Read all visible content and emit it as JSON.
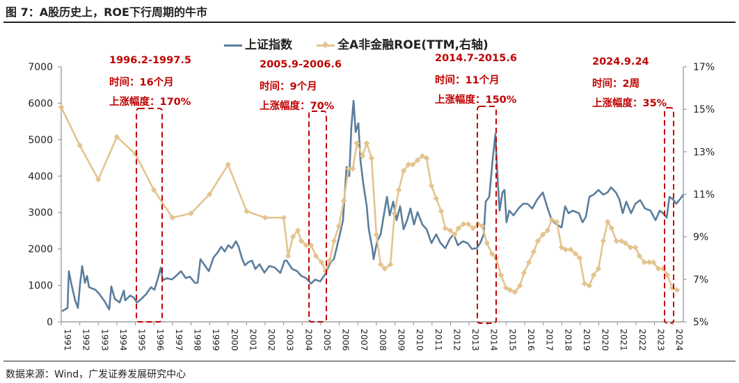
{
  "title": "图 7：A股历史上，ROE下行周期的牛市",
  "source": "数据来源：Wind，广发证券发展研究中心",
  "colors": {
    "index": "#5a7d9c",
    "roe": "#e3c48f",
    "annotation": "#c00000"
  },
  "annotations": [
    {
      "period": "1996.2-1997.5",
      "duration": "时间：16个月",
      "gain": "上涨幅度：170%"
    },
    {
      "period": "2005.9-2006.6",
      "duration": "时间：9个月",
      "gain": "上涨幅度：70%"
    },
    {
      "period": "2014.7-2015.6",
      "duration": "时间：11个月",
      "gain": "上涨幅度：150%"
    },
    {
      "period": "2024.9.24",
      "duration": "时间：2周",
      "gain": "上涨幅度：35%"
    }
  ],
  "chart_data": {
    "type": "line",
    "title": "",
    "legend_position": "top",
    "x_ticks": [
      "1991",
      "1992",
      "1993",
      "1994",
      "1995",
      "1996",
      "1997",
      "1998",
      "1999",
      "2000",
      "2001",
      "2002",
      "2003",
      "2004",
      "2005",
      "2006",
      "2007",
      "2008",
      "2009",
      "2010",
      "2011",
      "2012",
      "2013",
      "2014",
      "2015",
      "2016",
      "2017",
      "2018",
      "2019",
      "2020",
      "2021",
      "2022",
      "2023",
      "2024"
    ],
    "y_left": {
      "ticks": [
        "0",
        "1000",
        "2000",
        "3000",
        "4000",
        "5000",
        "6000",
        "7000"
      ],
      "range": [
        0,
        7000
      ]
    },
    "y_right": {
      "ticks": [
        "5%",
        "7%",
        "9%",
        "11%",
        "13%",
        "15%",
        "17%"
      ],
      "range": [
        5,
        17
      ]
    },
    "x_range": [
      1991,
      2024.6
    ],
    "series": [
      {
        "name": "上证指数",
        "axis": "left",
        "points": [
          [
            1991.04,
            290
          ],
          [
            1991.34,
            380
          ],
          [
            1991.41,
            1390
          ],
          [
            1991.56,
            1010
          ],
          [
            1991.75,
            590
          ],
          [
            1991.9,
            380
          ],
          [
            1992.01,
            1010
          ],
          [
            1992.13,
            1530
          ],
          [
            1992.28,
            1070
          ],
          [
            1992.39,
            1260
          ],
          [
            1992.5,
            950
          ],
          [
            1992.84,
            880
          ],
          [
            1993.06,
            760
          ],
          [
            1993.33,
            570
          ],
          [
            1993.59,
            340
          ],
          [
            1993.7,
            970
          ],
          [
            1993.89,
            630
          ],
          [
            1994.15,
            530
          ],
          [
            1994.38,
            860
          ],
          [
            1994.45,
            590
          ],
          [
            1994.72,
            720
          ],
          [
            1994.9,
            670
          ],
          [
            1995.09,
            530
          ],
          [
            1995.32,
            630
          ],
          [
            1995.58,
            760
          ],
          [
            1995.84,
            950
          ],
          [
            1996.03,
            880
          ],
          [
            1996.22,
            1200
          ],
          [
            1996.37,
            1490
          ],
          [
            1996.48,
            1140
          ],
          [
            1996.71,
            1200
          ],
          [
            1996.97,
            1160
          ],
          [
            1997.19,
            1260
          ],
          [
            1997.46,
            1390
          ],
          [
            1997.72,
            1200
          ],
          [
            1997.94,
            1240
          ],
          [
            1998.21,
            1070
          ],
          [
            1998.36,
            1070
          ],
          [
            1998.51,
            1720
          ],
          [
            1998.7,
            1580
          ],
          [
            1998.96,
            1390
          ],
          [
            1999.22,
            1770
          ],
          [
            1999.45,
            1910
          ],
          [
            1999.63,
            2060
          ],
          [
            1999.82,
            1930
          ],
          [
            2000.01,
            2100
          ],
          [
            2000.2,
            2020
          ],
          [
            2000.42,
            2210
          ],
          [
            2000.57,
            2060
          ],
          [
            2000.76,
            1720
          ],
          [
            2000.91,
            1550
          ],
          [
            2001.1,
            1640
          ],
          [
            2001.29,
            1680
          ],
          [
            2001.47,
            1450
          ],
          [
            2001.7,
            1580
          ],
          [
            2001.96,
            1350
          ],
          [
            2002.22,
            1530
          ],
          [
            2002.52,
            1490
          ],
          [
            2002.82,
            1340
          ],
          [
            2003.05,
            1680
          ],
          [
            2003.16,
            1680
          ],
          [
            2003.46,
            1450
          ],
          [
            2003.73,
            1390
          ],
          [
            2003.95,
            1260
          ],
          [
            2004.21,
            1200
          ],
          [
            2004.48,
            1050
          ],
          [
            2004.7,
            1160
          ],
          [
            2004.97,
            1110
          ],
          [
            2005.23,
            1300
          ],
          [
            2005.53,
            1640
          ],
          [
            2005.71,
            1720
          ],
          [
            2005.98,
            2290
          ],
          [
            2006.2,
            2790
          ],
          [
            2006.39,
            4250
          ],
          [
            2006.54,
            4000
          ],
          [
            2006.65,
            5340
          ],
          [
            2006.77,
            6070
          ],
          [
            2006.88,
            5210
          ],
          [
            2007.03,
            5450
          ],
          [
            2007.14,
            4440
          ],
          [
            2007.29,
            3810
          ],
          [
            2007.48,
            3170
          ],
          [
            2007.59,
            2540
          ],
          [
            2007.78,
            2020
          ],
          [
            2007.85,
            1720
          ],
          [
            2008.04,
            2210
          ],
          [
            2008.23,
            2400
          ],
          [
            2008.42,
            2980
          ],
          [
            2008.57,
            3430
          ],
          [
            2008.72,
            2920
          ],
          [
            2008.91,
            3300
          ],
          [
            2009.09,
            2790
          ],
          [
            2009.28,
            3170
          ],
          [
            2009.47,
            2540
          ],
          [
            2009.66,
            2790
          ],
          [
            2009.84,
            3110
          ],
          [
            2010.03,
            2670
          ],
          [
            2010.22,
            3010
          ],
          [
            2010.48,
            2670
          ],
          [
            2010.71,
            2540
          ],
          [
            2010.97,
            2160
          ],
          [
            2011.23,
            2400
          ],
          [
            2011.46,
            2160
          ],
          [
            2011.72,
            2020
          ],
          [
            2011.98,
            2290
          ],
          [
            2012.17,
            2400
          ],
          [
            2012.4,
            2100
          ],
          [
            2012.66,
            2210
          ],
          [
            2012.92,
            2160
          ],
          [
            2013.15,
            2000
          ],
          [
            2013.41,
            2020
          ],
          [
            2013.6,
            2160
          ],
          [
            2013.79,
            2400
          ],
          [
            2013.9,
            3300
          ],
          [
            2014.09,
            3430
          ],
          [
            2014.27,
            4440
          ],
          [
            2014.42,
            5150
          ],
          [
            2014.54,
            3930
          ],
          [
            2014.65,
            3050
          ],
          [
            2014.8,
            3550
          ],
          [
            2014.91,
            3620
          ],
          [
            2015.02,
            2730
          ],
          [
            2015.17,
            3050
          ],
          [
            2015.4,
            2920
          ],
          [
            2015.66,
            3110
          ],
          [
            2015.92,
            3240
          ],
          [
            2016.15,
            3240
          ],
          [
            2016.41,
            3110
          ],
          [
            2016.68,
            3360
          ],
          [
            2016.98,
            3550
          ],
          [
            2017.24,
            3110
          ],
          [
            2017.46,
            2790
          ],
          [
            2017.73,
            2670
          ],
          [
            2017.99,
            2590
          ],
          [
            2018.18,
            3170
          ],
          [
            2018.37,
            2980
          ],
          [
            2018.59,
            3050
          ],
          [
            2018.93,
            2980
          ],
          [
            2019.12,
            2730
          ],
          [
            2019.3,
            2880
          ],
          [
            2019.49,
            3430
          ],
          [
            2019.72,
            3490
          ],
          [
            2019.98,
            3620
          ],
          [
            2020.24,
            3490
          ],
          [
            2020.47,
            3550
          ],
          [
            2020.66,
            3690
          ],
          [
            2020.92,
            3550
          ],
          [
            2021.11,
            3360
          ],
          [
            2021.29,
            2980
          ],
          [
            2021.48,
            3300
          ],
          [
            2021.74,
            2980
          ],
          [
            2021.97,
            3240
          ],
          [
            2022.23,
            3340
          ],
          [
            2022.49,
            3110
          ],
          [
            2022.79,
            3050
          ],
          [
            2023.06,
            2790
          ],
          [
            2023.28,
            3050
          ],
          [
            2023.47,
            2980
          ],
          [
            2023.66,
            2860
          ],
          [
            2023.81,
            3430
          ],
          [
            2024.0,
            3360
          ],
          [
            2024.18,
            3240
          ],
          [
            2024.37,
            3360
          ],
          [
            2024.56,
            3490
          ]
        ]
      },
      {
        "name": "全A非金融ROE(TTM,右轴)",
        "axis": "right",
        "points": [
          [
            1991.0,
            15.1
          ],
          [
            1992.0,
            13.3
          ],
          [
            1993.0,
            11.7
          ],
          [
            1994.0,
            13.7
          ],
          [
            1995.0,
            12.9
          ],
          [
            1996.0,
            11.2
          ],
          [
            1997.0,
            9.9
          ],
          [
            1998.0,
            10.1
          ],
          [
            1999.0,
            11.0
          ],
          [
            2000.0,
            12.4
          ],
          [
            2001.0,
            10.2
          ],
          [
            2002.0,
            9.9
          ],
          [
            2003.0,
            9.9
          ],
          [
            2003.24,
            8.1
          ],
          [
            2003.5,
            9.0
          ],
          [
            2003.76,
            9.3
          ],
          [
            2003.95,
            8.8
          ],
          [
            2004.21,
            8.6
          ],
          [
            2004.48,
            8.6
          ],
          [
            2004.74,
            8.1
          ],
          [
            2005.04,
            7.8
          ],
          [
            2005.26,
            7.4
          ],
          [
            2005.49,
            7.9
          ],
          [
            2005.71,
            8.8
          ],
          [
            2005.98,
            9.5
          ],
          [
            2006.24,
            10.7
          ],
          [
            2006.5,
            12.2
          ],
          [
            2006.73,
            12.2
          ],
          [
            2006.95,
            13.4
          ],
          [
            2007.25,
            12.8
          ],
          [
            2007.48,
            13.4
          ],
          [
            2007.74,
            12.7
          ],
          [
            2008.0,
            9.1
          ],
          [
            2008.23,
            7.7
          ],
          [
            2008.45,
            7.5
          ],
          [
            2008.76,
            7.7
          ],
          [
            2008.98,
            10.1
          ],
          [
            2009.21,
            11.2
          ],
          [
            2009.47,
            12.1
          ],
          [
            2009.73,
            12.4
          ],
          [
            2009.96,
            12.4
          ],
          [
            2010.22,
            12.6
          ],
          [
            2010.48,
            12.8
          ],
          [
            2010.71,
            12.7
          ],
          [
            2010.97,
            11.4
          ],
          [
            2011.23,
            10.8
          ],
          [
            2011.5,
            10.2
          ],
          [
            2011.72,
            9.4
          ],
          [
            2011.98,
            9.3
          ],
          [
            2012.21,
            9.1
          ],
          [
            2012.43,
            9.4
          ],
          [
            2012.7,
            9.6
          ],
          [
            2012.96,
            9.6
          ],
          [
            2013.22,
            9.4
          ],
          [
            2013.49,
            9.6
          ],
          [
            2013.71,
            9.5
          ],
          [
            2013.97,
            8.7
          ],
          [
            2014.24,
            8.2
          ],
          [
            2014.46,
            8.0
          ],
          [
            2014.72,
            7.2
          ],
          [
            2014.99,
            6.6
          ],
          [
            2015.21,
            6.5
          ],
          [
            2015.47,
            6.4
          ],
          [
            2015.74,
            6.7
          ],
          [
            2015.96,
            7.3
          ],
          [
            2016.23,
            7.8
          ],
          [
            2016.49,
            8.3
          ],
          [
            2016.71,
            8.8
          ],
          [
            2016.98,
            9.1
          ],
          [
            2017.24,
            9.3
          ],
          [
            2017.46,
            9.8
          ],
          [
            2017.73,
            9.7
          ],
          [
            2017.99,
            8.5
          ],
          [
            2018.21,
            8.4
          ],
          [
            2018.48,
            8.4
          ],
          [
            2018.74,
            8.2
          ],
          [
            2018.97,
            8.0
          ],
          [
            2019.23,
            6.8
          ],
          [
            2019.49,
            6.7
          ],
          [
            2019.72,
            7.2
          ],
          [
            2019.98,
            7.5
          ],
          [
            2020.24,
            8.8
          ],
          [
            2020.47,
            9.7
          ],
          [
            2020.69,
            9.4
          ],
          [
            2020.95,
            8.8
          ],
          [
            2021.22,
            8.8
          ],
          [
            2021.44,
            8.7
          ],
          [
            2021.71,
            8.5
          ],
          [
            2021.97,
            8.5
          ],
          [
            2022.19,
            8.1
          ],
          [
            2022.46,
            7.8
          ],
          [
            2022.72,
            7.8
          ],
          [
            2022.94,
            7.8
          ],
          [
            2023.21,
            7.5
          ],
          [
            2023.47,
            7.5
          ],
          [
            2023.7,
            7.2
          ],
          [
            2023.96,
            6.6
          ],
          [
            2024.22,
            6.5
          ]
        ]
      }
    ]
  }
}
